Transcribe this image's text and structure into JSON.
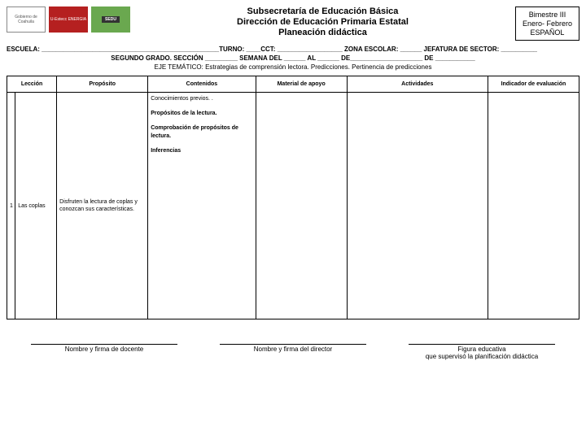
{
  "logos": {
    "coahuila": "Gobierno de Coahuila",
    "energia": "U-Estecc ENERGIA",
    "sedu": "SEDU"
  },
  "header": {
    "line1": "Subsecretaría de Educación Básica",
    "line2": "Dirección de Educación Primaria Estatal",
    "line3": "Planeación didáctica"
  },
  "bimestre": {
    "line1": "Bimestre III",
    "line2": "Enero- Febrero",
    "line3": "ESPAÑOL"
  },
  "escuela_line": "ESCUELA: _________________________________________________TURNO: ____CCT: __________________ ZONA ESCOLAR: ______   JEFATURA DE SECTOR: __________",
  "segundo_line": "SEGUNDO GRADO.    SECCIÓN _________   SEMANA DEL ______ AL ______ DE____________________ DE ___________",
  "eje_line": "EJE TEMÁTICO: Estrategias de comprensión lectora.  Predicciones. Pertinencia de predicciones",
  "columns": {
    "leccion": "Lección",
    "proposito": "Propósito",
    "contenidos": "Contenidos",
    "material": "Material de apoyo",
    "actividades": "Actividades",
    "indicador": "Indicador de evaluación"
  },
  "row": {
    "num": "1",
    "leccion": "Las coplas",
    "proposito": "Disfruten la lectura de coplas y conozcan sus características.",
    "cont1": "Conocimientos previos. .",
    "cont2": "Propósitos de la lectura.",
    "cont3": "Comprobación de propósitos de lectura.",
    "cont4": "Inferencias"
  },
  "footer": {
    "sig1": "Nombre y firma de docente",
    "sig2": "Nombre y firma del director",
    "sig3a": "Figura educativa",
    "sig3b": "que supervisó la planificación didáctica"
  }
}
